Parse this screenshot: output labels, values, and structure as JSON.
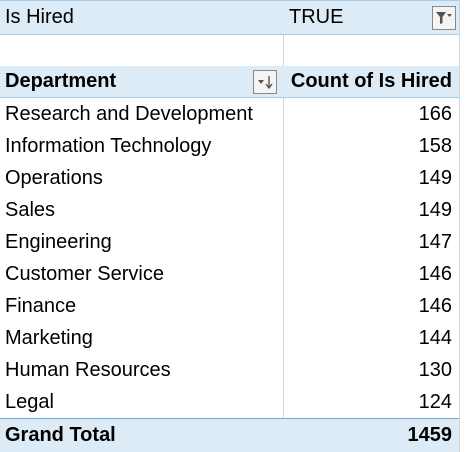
{
  "filter": {
    "field_label": "Is Hired",
    "value": "TRUE"
  },
  "header": {
    "row_label": "Department",
    "value_label": "Count of Is Hired"
  },
  "rows": [
    {
      "department": "Research and Development",
      "count": "166"
    },
    {
      "department": "Information Technology",
      "count": "158"
    },
    {
      "department": "Operations",
      "count": "149"
    },
    {
      "department": "Sales",
      "count": "149"
    },
    {
      "department": "Engineering",
      "count": "147"
    },
    {
      "department": "Customer Service",
      "count": "146"
    },
    {
      "department": "Finance",
      "count": "146"
    },
    {
      "department": "Marketing",
      "count": "144"
    },
    {
      "department": "Human Resources",
      "count": "130"
    },
    {
      "department": "Legal",
      "count": "124"
    }
  ],
  "total": {
    "label": "Grand Total",
    "value": "1459"
  },
  "colors": {
    "header_fill": "#dcebf6",
    "header_border": "#a9cde7"
  },
  "icons": {
    "filter_dropdown": "filter-funnel-icon",
    "sort_dropdown": "sort-descending-icon"
  }
}
